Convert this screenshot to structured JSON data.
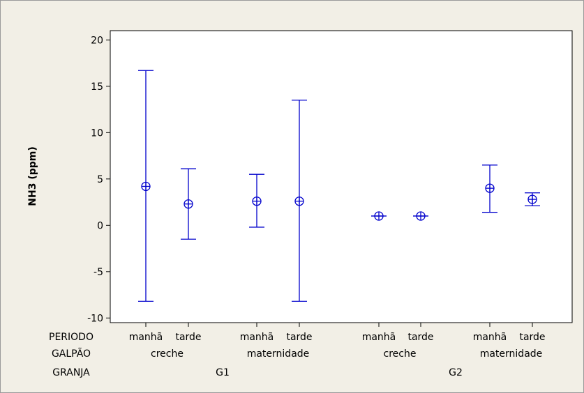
{
  "chart_data": {
    "type": "interval",
    "ylabel": "NH3 (ppm)",
    "ylim": [
      -10.5,
      21
    ],
    "yticks": [
      -10,
      -5,
      0,
      5,
      10,
      15,
      20
    ],
    "row_labels": {
      "periodo": "PERIODO",
      "galpao": "GALPÃO",
      "granja": "GRANJA"
    },
    "galpao_groups": [
      {
        "label": "creche",
        "granja": "G1"
      },
      {
        "label": "maternidade",
        "granja": "G1"
      },
      {
        "label": "creche",
        "granja": "G2"
      },
      {
        "label": "maternidade",
        "granja": "G2"
      }
    ],
    "granja_groups": [
      "G1",
      "G2"
    ],
    "points": [
      {
        "periodo": "manhã",
        "galpao": "creche",
        "granja": "G1",
        "mean": 4.2,
        "lower": -8.2,
        "upper": 16.7
      },
      {
        "periodo": "tarde",
        "galpao": "creche",
        "granja": "G1",
        "mean": 2.3,
        "lower": -1.5,
        "upper": 6.1
      },
      {
        "periodo": "manhã",
        "galpao": "maternidade",
        "granja": "G1",
        "mean": 2.6,
        "lower": -0.2,
        "upper": 5.5
      },
      {
        "periodo": "tarde",
        "galpao": "maternidade",
        "granja": "G1",
        "mean": 2.6,
        "lower": -8.2,
        "upper": 13.5
      },
      {
        "periodo": "manhã",
        "galpao": "creche",
        "granja": "G2",
        "mean": 1.0,
        "lower": 1.0,
        "upper": 1.0
      },
      {
        "periodo": "tarde",
        "galpao": "creche",
        "granja": "G2",
        "mean": 1.0,
        "lower": 1.0,
        "upper": 1.0
      },
      {
        "periodo": "manhã",
        "galpao": "maternidade",
        "granja": "G2",
        "mean": 4.0,
        "lower": 1.4,
        "upper": 6.5
      },
      {
        "periodo": "tarde",
        "galpao": "maternidade",
        "granja": "G2",
        "mean": 2.8,
        "lower": 2.1,
        "upper": 3.5
      }
    ],
    "colors": {
      "series": "#0000cc",
      "axis": "#000000",
      "plot_bg": "#ffffff",
      "figure_bg": "#f2efe6"
    }
  }
}
